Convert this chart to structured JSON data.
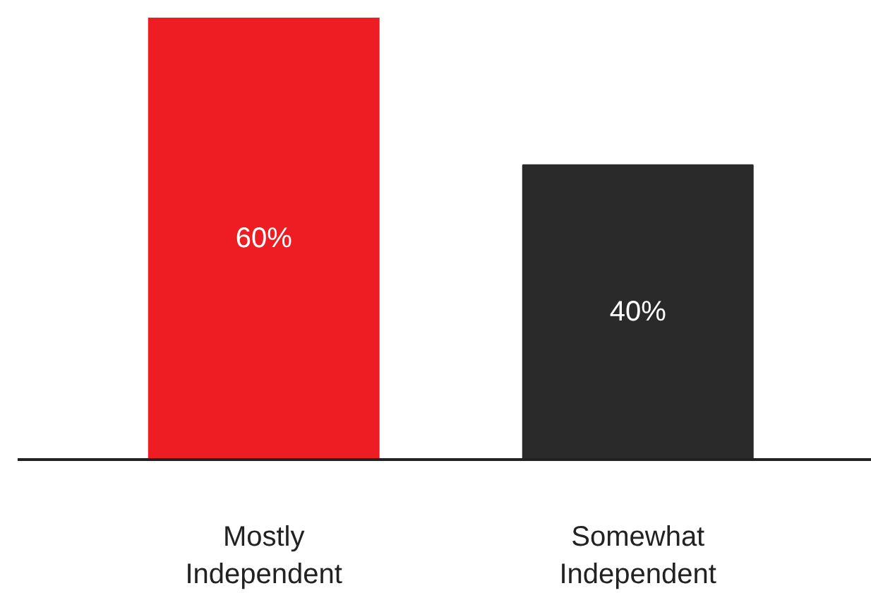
{
  "chart_data": {
    "type": "bar",
    "categories": [
      "Mostly Independent",
      "Somewhat Independent"
    ],
    "values": [
      60,
      40
    ],
    "colors": [
      "#ee1d23",
      "#2a2a2a"
    ],
    "value_labels": [
      "60%",
      "40%"
    ],
    "tick_labels": "x"
  }
}
